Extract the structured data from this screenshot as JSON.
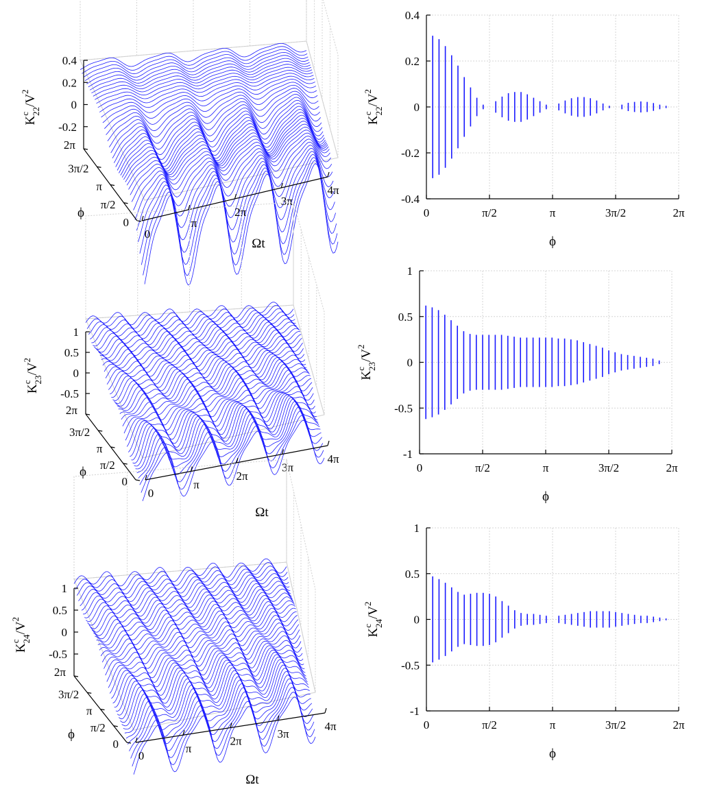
{
  "chart_data": [
    {
      "id": "k22_surface",
      "type": "surface",
      "zlabel_main": "K",
      "zlabel_sup": "c",
      "zlabel_sub": "22",
      "zlabel_rest": "/V",
      "zlabel_exp": "2",
      "xlabel": "Ωt",
      "ylabel": "ϕ",
      "zticks": [
        "0.4",
        "0.2",
        "0",
        "-0.2"
      ],
      "xticks": [
        "0",
        "π",
        "2π",
        "3π",
        "4π"
      ],
      "yticks": [
        "2π",
        "3π/2",
        "π",
        "π/2",
        "0"
      ],
      "zlim": [
        -0.4,
        0.4
      ],
      "xlim_text": "0 to 4π",
      "ylim_text": "0 to 2π"
    },
    {
      "id": "k22_lines",
      "type": "bar",
      "ylabel_main": "K",
      "ylabel_sup": "c",
      "ylabel_sub": "22",
      "ylabel_rest": "/V",
      "ylabel_exp": "2",
      "xlabel": "ϕ",
      "xticks": [
        "0",
        "π/2",
        "π",
        "3π/2",
        "2π"
      ],
      "yticks": [
        "0.4",
        "0.2",
        "0",
        "-0.2",
        "-0.4"
      ],
      "ylim": [
        -0.4,
        0.4
      ],
      "xlim_units_of_pi": [
        0,
        2
      ],
      "x_units_of_pi": [
        0.05,
        0.1,
        0.15,
        0.2,
        0.25,
        0.3,
        0.35,
        0.4,
        0.45,
        0.55,
        0.6,
        0.65,
        0.7,
        0.75,
        0.8,
        0.85,
        0.9,
        0.95,
        1.05,
        1.1,
        1.15,
        1.2,
        1.25,
        1.3,
        1.35,
        1.4,
        1.45,
        1.55,
        1.6,
        1.65,
        1.7,
        1.75,
        1.8,
        1.85,
        1.9
      ],
      "amplitudes": [
        0.31,
        0.295,
        0.265,
        0.225,
        0.18,
        0.13,
        0.085,
        0.04,
        0.01,
        0.025,
        0.045,
        0.06,
        0.065,
        0.065,
        0.055,
        0.04,
        0.025,
        0.01,
        0.015,
        0.028,
        0.038,
        0.043,
        0.043,
        0.038,
        0.028,
        0.015,
        0.005,
        0.01,
        0.018,
        0.022,
        0.024,
        0.022,
        0.017,
        0.01,
        0.005
      ]
    },
    {
      "id": "k23_surface",
      "type": "surface",
      "zlabel_main": "K",
      "zlabel_sup": "c",
      "zlabel_sub": "23",
      "zlabel_rest": "/V",
      "zlabel_exp": "2",
      "xlabel": "Ωt",
      "ylabel": "ϕ",
      "zticks": [
        "1",
        "0.5",
        "0",
        "-0.5"
      ],
      "xticks": [
        "0",
        "π",
        "2π",
        "3π",
        "4π"
      ],
      "yticks": [
        "2π",
        "3π/2",
        "π",
        "π/2",
        "0"
      ],
      "zlim": [
        -1,
        1
      ],
      "xlim_text": "0 to 4π",
      "ylim_text": "0 to 2π"
    },
    {
      "id": "k23_lines",
      "type": "bar",
      "ylabel_main": "K",
      "ylabel_sup": "c",
      "ylabel_sub": "23",
      "ylabel_rest": "/V",
      "ylabel_exp": "2",
      "xlabel": "ϕ",
      "xticks": [
        "0",
        "π/2",
        "π",
        "3π/2",
        "2π"
      ],
      "yticks": [
        "1",
        "0.5",
        "0",
        "-0.5",
        "-1"
      ],
      "ylim": [
        -1,
        1
      ],
      "xlim_units_of_pi": [
        0,
        2
      ],
      "x_units_of_pi": [
        0.05,
        0.1,
        0.15,
        0.2,
        0.25,
        0.3,
        0.35,
        0.4,
        0.45,
        0.5,
        0.55,
        0.6,
        0.65,
        0.7,
        0.75,
        0.8,
        0.85,
        0.9,
        0.95,
        1.0,
        1.05,
        1.1,
        1.15,
        1.2,
        1.25,
        1.3,
        1.35,
        1.4,
        1.45,
        1.5,
        1.55,
        1.6,
        1.65,
        1.7,
        1.75,
        1.8,
        1.85,
        1.9
      ],
      "amplitudes": [
        0.62,
        0.6,
        0.57,
        0.52,
        0.46,
        0.4,
        0.34,
        0.31,
        0.3,
        0.3,
        0.3,
        0.3,
        0.3,
        0.29,
        0.28,
        0.27,
        0.27,
        0.27,
        0.27,
        0.27,
        0.27,
        0.26,
        0.26,
        0.25,
        0.24,
        0.22,
        0.2,
        0.18,
        0.16,
        0.13,
        0.11,
        0.09,
        0.08,
        0.07,
        0.06,
        0.05,
        0.04,
        0.02
      ]
    },
    {
      "id": "k24_surface",
      "type": "surface",
      "zlabel_main": "K",
      "zlabel_sup": "c",
      "zlabel_sub": "24",
      "zlabel_rest": "/V",
      "zlabel_exp": "2",
      "xlabel": "Ωt",
      "ylabel": "ϕ",
      "zticks": [
        "1",
        "0.5",
        "0",
        "-0.5"
      ],
      "xticks": [
        "0",
        "π",
        "2π",
        "3π",
        "4π"
      ],
      "yticks": [
        "2π",
        "3π/2",
        "π",
        "π/2",
        "0"
      ],
      "zlim": [
        -1,
        1
      ],
      "xlim_text": "0 to 4π",
      "ylim_text": "0 to 2π"
    },
    {
      "id": "k24_lines",
      "type": "bar",
      "ylabel_main": "K",
      "ylabel_sup": "c",
      "ylabel_sub": "24",
      "ylabel_rest": "/V",
      "ylabel_exp": "2",
      "xlabel": "ϕ",
      "xticks": [
        "0",
        "π/2",
        "π",
        "3π/2",
        "2π"
      ],
      "yticks": [
        "1",
        "0.5",
        "0",
        "-0.5",
        "-1"
      ],
      "ylim": [
        -1,
        1
      ],
      "xlim_units_of_pi": [
        0,
        2
      ],
      "x_units_of_pi": [
        0.05,
        0.1,
        0.15,
        0.2,
        0.25,
        0.3,
        0.35,
        0.4,
        0.45,
        0.5,
        0.55,
        0.6,
        0.65,
        0.7,
        0.75,
        0.8,
        0.85,
        0.9,
        0.95,
        1.05,
        1.1,
        1.15,
        1.2,
        1.25,
        1.3,
        1.35,
        1.4,
        1.45,
        1.5,
        1.55,
        1.6,
        1.65,
        1.7,
        1.75,
        1.8,
        1.85,
        1.9
      ],
      "amplitudes": [
        0.47,
        0.44,
        0.4,
        0.35,
        0.3,
        0.27,
        0.28,
        0.29,
        0.29,
        0.28,
        0.25,
        0.2,
        0.15,
        0.1,
        0.07,
        0.06,
        0.06,
        0.05,
        0.04,
        0.04,
        0.05,
        0.06,
        0.07,
        0.08,
        0.09,
        0.09,
        0.09,
        0.09,
        0.08,
        0.07,
        0.06,
        0.05,
        0.04,
        0.04,
        0.03,
        0.02,
        0.01
      ]
    }
  ]
}
